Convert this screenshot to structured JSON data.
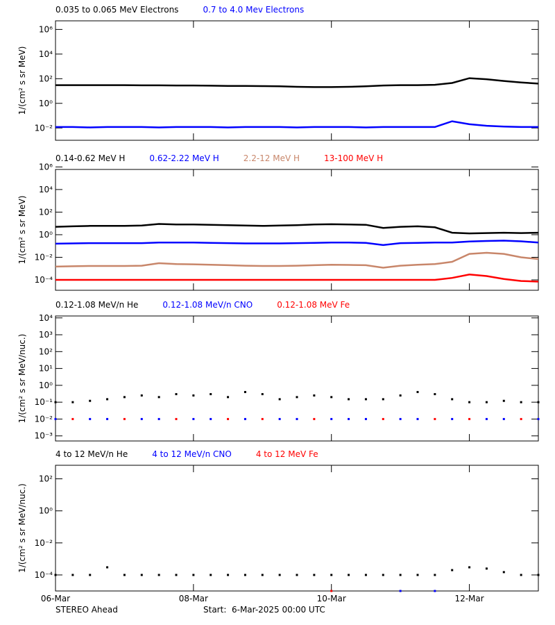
{
  "chart_data": [
    {
      "type": "line",
      "log": true,
      "ylabel": "1/(cm² s sr MeV)",
      "x": [
        0,
        0.25,
        0.5,
        0.75,
        1,
        1.25,
        1.5,
        1.75,
        2,
        2.25,
        2.5,
        2.75,
        3,
        3.25,
        3.5,
        3.75,
        4,
        4.25,
        4.5,
        4.75,
        5,
        5.25,
        5.5,
        5.75,
        6,
        6.25,
        6.5,
        6.75,
        7
      ],
      "xlim": [
        0,
        7
      ],
      "ylim": [
        0.001,
        5000000
      ],
      "yticks": [
        {
          "value": 0.01,
          "label": "10⁻²"
        },
        {
          "value": 1,
          "label": "10⁰"
        },
        {
          "value": 100,
          "label": "10²"
        },
        {
          "value": 10000,
          "label": "10⁴"
        },
        {
          "value": 1000000,
          "label": "10⁶"
        }
      ],
      "series": [
        {
          "name": "0.035 to 0.065 MeV Electrons",
          "color": "#000000",
          "values": [
            30,
            30,
            30,
            30,
            30,
            29,
            29,
            28,
            28,
            27,
            26,
            26,
            25,
            24,
            22,
            21,
            21,
            22,
            24,
            28,
            30,
            30,
            32,
            45,
            110,
            90,
            65,
            50,
            40
          ]
        },
        {
          "name": "0.7 to 4.0 Mev Electrons",
          "color": "#0000ff",
          "values": [
            0.012,
            0.012,
            0.011,
            0.012,
            0.012,
            0.012,
            0.011,
            0.012,
            0.012,
            0.012,
            0.011,
            0.012,
            0.012,
            0.012,
            0.011,
            0.012,
            0.012,
            0.012,
            0.011,
            0.012,
            0.012,
            0.012,
            0.012,
            0.035,
            0.02,
            0.015,
            0.013,
            0.012,
            0.012
          ]
        }
      ]
    },
    {
      "type": "line",
      "log": true,
      "ylabel": "1/(cm² s sr MeV)",
      "x": [
        0,
        0.25,
        0.5,
        0.75,
        1,
        1.25,
        1.5,
        1.75,
        2,
        2.25,
        2.5,
        2.75,
        3,
        3.25,
        3.5,
        3.75,
        4,
        4.25,
        4.5,
        4.75,
        5,
        5.25,
        5.5,
        5.75,
        6,
        6.25,
        6.5,
        6.75,
        7
      ],
      "xlim": [
        0,
        7
      ],
      "ylim": [
        1.2e-05,
        600000
      ],
      "yticks": [
        {
          "value": 0.0001,
          "label": "10⁻⁴"
        },
        {
          "value": 0.01,
          "label": "10⁻²"
        },
        {
          "value": 1,
          "label": "10⁰"
        },
        {
          "value": 100,
          "label": "10²"
        },
        {
          "value": 10000,
          "label": "10⁴"
        },
        {
          "value": 1000000,
          "label": "10⁶"
        }
      ],
      "series": [
        {
          "name": "0.14-0.62 MeV H",
          "color": "#000000",
          "values": [
            5,
            5.5,
            6,
            6,
            6,
            6.5,
            9,
            8,
            8,
            7.5,
            7,
            6.5,
            6,
            6.5,
            7,
            8,
            8.5,
            8,
            7.5,
            4,
            5,
            5.5,
            4.5,
            1.5,
            1.3,
            1.4,
            1.5,
            1.4,
            1.5
          ]
        },
        {
          "name": "0.62-2.22 MeV H",
          "color": "#0000ff",
          "values": [
            0.16,
            0.17,
            0.18,
            0.18,
            0.18,
            0.18,
            0.2,
            0.2,
            0.2,
            0.19,
            0.18,
            0.17,
            0.17,
            0.17,
            0.18,
            0.19,
            0.2,
            0.2,
            0.19,
            0.12,
            0.18,
            0.19,
            0.2,
            0.2,
            0.25,
            0.28,
            0.3,
            0.26,
            0.2
          ]
        },
        {
          "name": "2.2-12 MeV H",
          "color": "#c8866a",
          "values": [
            0.0015,
            0.0016,
            0.0017,
            0.0017,
            0.0017,
            0.0018,
            0.003,
            0.0025,
            0.0024,
            0.0022,
            0.002,
            0.0018,
            0.0017,
            0.0017,
            0.0018,
            0.002,
            0.0022,
            0.0021,
            0.002,
            0.0012,
            0.0018,
            0.0022,
            0.0025,
            0.004,
            0.02,
            0.025,
            0.02,
            0.01,
            0.007
          ]
        },
        {
          "name": "13-100 MeV H",
          "color": "#ff0000",
          "values": [
            0.0001,
            0.0001,
            0.0001,
            0.0001,
            0.0001,
            0.0001,
            0.0001,
            0.0001,
            0.0001,
            0.0001,
            0.0001,
            0.0001,
            0.0001,
            0.0001,
            0.0001,
            0.0001,
            0.0001,
            0.0001,
            0.0001,
            0.0001,
            0.0001,
            0.0001,
            0.0001,
            0.00015,
            0.0003,
            0.00022,
            0.00012,
            8e-05,
            7e-05
          ]
        }
      ]
    },
    {
      "type": "scatter",
      "log": true,
      "ylabel": "1/(cm² s sr MeV/nuc.)",
      "x": [
        0,
        0.25,
        0.5,
        0.75,
        1,
        1.25,
        1.5,
        1.75,
        2,
        2.25,
        2.5,
        2.75,
        3,
        3.25,
        3.5,
        3.75,
        4,
        4.25,
        4.5,
        4.75,
        5,
        5.25,
        5.5,
        5.75,
        6,
        6.25,
        6.5,
        6.75,
        7
      ],
      "xlim": [
        0,
        7
      ],
      "ylim": [
        0.0005,
        13000
      ],
      "yticks": [
        {
          "value": 0.001,
          "label": "10⁻³"
        },
        {
          "value": 0.01,
          "label": "10⁻²"
        },
        {
          "value": 0.1,
          "label": "10⁻¹"
        },
        {
          "value": 1,
          "label": "10⁰"
        },
        {
          "value": 10,
          "label": "10¹"
        },
        {
          "value": 100,
          "label": "10²"
        },
        {
          "value": 1000,
          "label": "10³"
        },
        {
          "value": 10000,
          "label": "10⁴"
        }
      ],
      "series": [
        {
          "name": "0.12-1.08 MeV/n He",
          "color": "#000000",
          "values": [
            0.1,
            0.1,
            0.12,
            0.15,
            0.2,
            0.25,
            0.2,
            0.3,
            0.25,
            0.3,
            0.2,
            0.4,
            0.3,
            0.15,
            0.2,
            0.25,
            0.2,
            0.15,
            0.15,
            0.15,
            0.25,
            0.4,
            0.3,
            0.15,
            0.1,
            0.1,
            0.12,
            0.1,
            0.1
          ]
        },
        {
          "name": "0.12-1.08 MeV/n CNO",
          "color": "#0000ff",
          "values": [
            0.01,
            null,
            0.01,
            0.01,
            null,
            0.01,
            0.01,
            null,
            0.01,
            0.01,
            null,
            0.01,
            null,
            0.01,
            0.01,
            null,
            0.01,
            0.01,
            0.01,
            null,
            0.01,
            0.01,
            null,
            0.01,
            null,
            0.01,
            0.01,
            null,
            0.01
          ]
        },
        {
          "name": "0.12-1.08 MeV Fe",
          "color": "#ff0000",
          "values": [
            null,
            0.01,
            null,
            null,
            0.01,
            null,
            null,
            0.01,
            null,
            null,
            0.01,
            null,
            0.01,
            null,
            null,
            0.01,
            null,
            null,
            null,
            0.01,
            null,
            null,
            0.01,
            null,
            0.01,
            null,
            null,
            0.01,
            null
          ]
        }
      ]
    },
    {
      "type": "scatter",
      "log": true,
      "ylabel": "1/(cm² s sr MeV/nuc.)",
      "x": [
        0,
        0.25,
        0.5,
        0.75,
        1,
        1.25,
        1.5,
        1.75,
        2,
        2.25,
        2.5,
        2.75,
        3,
        3.25,
        3.5,
        3.75,
        4,
        4.25,
        4.5,
        4.75,
        5,
        5.25,
        5.5,
        5.75,
        6,
        6.25,
        6.5,
        6.75,
        7
      ],
      "xlim": [
        0,
        7
      ],
      "ylim": [
        1e-05,
        700
      ],
      "xticks": [
        {
          "value": 0,
          "label": "06-Mar"
        },
        {
          "value": 2,
          "label": "08-Mar"
        },
        {
          "value": 4,
          "label": "10-Mar"
        },
        {
          "value": 6,
          "label": "12-Mar"
        }
      ],
      "yticks": [
        {
          "value": 0.0001,
          "label": "10⁻⁴"
        },
        {
          "value": 0.01,
          "label": "10⁻²"
        },
        {
          "value": 1,
          "label": "10⁰"
        },
        {
          "value": 100,
          "label": "10²"
        }
      ],
      "series": [
        {
          "name": "4 to 12 MeV/n He",
          "color": "#000000",
          "values": [
            0.0001,
            0.0001,
            0.0001,
            0.0003,
            0.0001,
            0.0001,
            0.0001,
            0.0001,
            0.0001,
            0.0001,
            0.0001,
            0.0001,
            0.0001,
            0.0001,
            0.0001,
            0.0001,
            0.0001,
            0.0001,
            0.0001,
            0.0001,
            0.0001,
            0.0001,
            0.0001,
            0.0002,
            0.0003,
            0.00025,
            0.00015,
            0.0001,
            0.0001
          ]
        },
        {
          "name": "4 to 12 MeV/n CNO",
          "color": "#0000ff",
          "values": [
            null,
            null,
            null,
            null,
            null,
            null,
            null,
            null,
            null,
            null,
            null,
            null,
            null,
            null,
            null,
            null,
            null,
            null,
            null,
            null,
            1e-05,
            null,
            1e-05,
            null,
            null,
            null,
            null,
            null,
            null
          ]
        },
        {
          "name": "4 to 12 MeV Fe",
          "color": "#ff0000",
          "values": [
            null,
            null,
            null,
            null,
            null,
            null,
            null,
            null,
            null,
            null,
            null,
            null,
            null,
            null,
            null,
            null,
            1e-05,
            null,
            null,
            null,
            null,
            null,
            null,
            null,
            null,
            null,
            null,
            null,
            null
          ]
        }
      ]
    }
  ],
  "footer": {
    "left": "STEREO Ahead",
    "right": "Start:  6-Mar-2025 00:00 UTC"
  }
}
